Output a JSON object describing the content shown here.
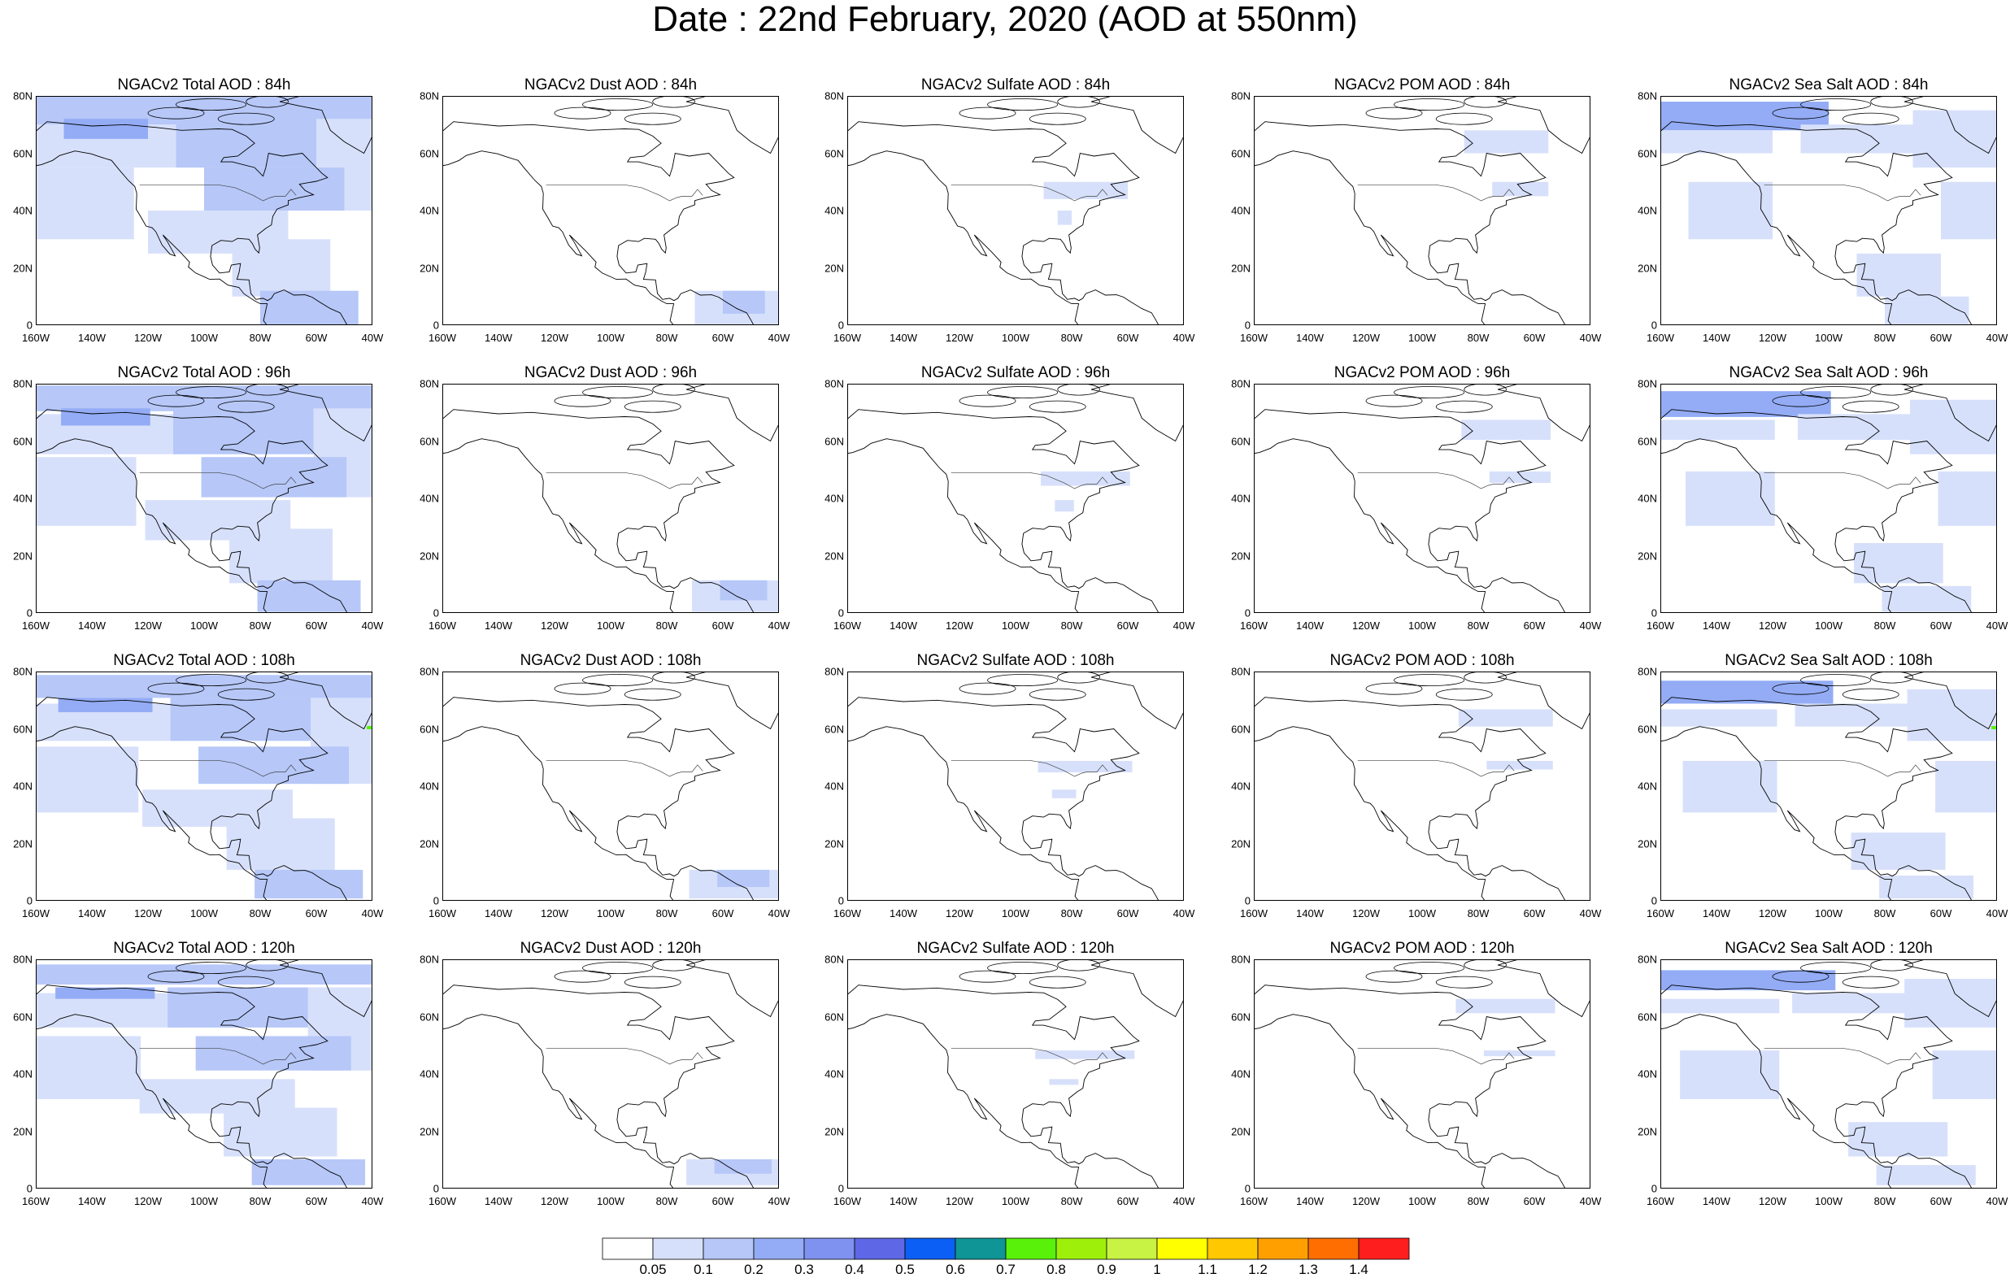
{
  "title": "Date : 22nd February, 2020 (AOD at 550nm)",
  "rows": [
    "84h",
    "96h",
    "108h",
    "120h"
  ],
  "panels": [
    [
      "NGACv2 Total AOD : 84h",
      "NGACv2 Dust AOD : 84h",
      "NGACv2 Sulfate AOD : 84h",
      "NGACv2 POM AOD : 84h",
      "NGACv2 Sea Salt AOD : 84h"
    ],
    [
      "NGACv2 Total AOD : 96h",
      "NGACv2 Dust AOD : 96h",
      "NGACv2 Sulfate AOD : 96h",
      "NGACv2 POM AOD : 96h",
      "NGACv2 Sea Salt AOD : 96h"
    ],
    [
      "NGACv2 Total AOD : 108h",
      "NGACv2 Dust AOD : 108h",
      "NGACv2 Sulfate AOD : 108h",
      "NGACv2 POM AOD : 108h",
      "NGACv2 Sea Salt AOD : 108h"
    ],
    [
      "NGACv2 Total AOD : 120h",
      "NGACv2 Dust AOD : 120h",
      "NGACv2 Sulfate AOD : 120h",
      "NGACv2 POM AOD : 120h",
      "NGACv2 Sea Salt AOD : 120h"
    ]
  ],
  "lat_ticks": [
    "0",
    "20N",
    "40N",
    "60N",
    "80N"
  ],
  "lon_ticks": [
    "160W",
    "140W",
    "120W",
    "100W",
    "80W",
    "60W",
    "40W"
  ],
  "colorbar": {
    "labels": [
      "0.05",
      "0.1",
      "0.2",
      "0.3",
      "0.4",
      "0.5",
      "0.6",
      "0.7",
      "0.8",
      "0.9",
      "1",
      "1.1",
      "1.2",
      "1.3",
      "1.4"
    ],
    "colors": [
      "#ffffff",
      "#d7e0fb",
      "#b6c7f8",
      "#93acf5",
      "#7f92ef",
      "#5e68e6",
      "#0c5ff4",
      "#0f9595",
      "#59f10a",
      "#9ef00b",
      "#c8f244",
      "#ffff00",
      "#ffc800",
      "#ff9f00",
      "#ff6e00",
      "#ff1e1e"
    ]
  },
  "colors": {
    "land_outline": "#000000",
    "aod_low": "#d7e0fb",
    "aod_mid": "#b6c7f8",
    "aod_high": "#93acf5",
    "aod_max": "#7f92ef",
    "green_spot": "#59f10a"
  }
}
